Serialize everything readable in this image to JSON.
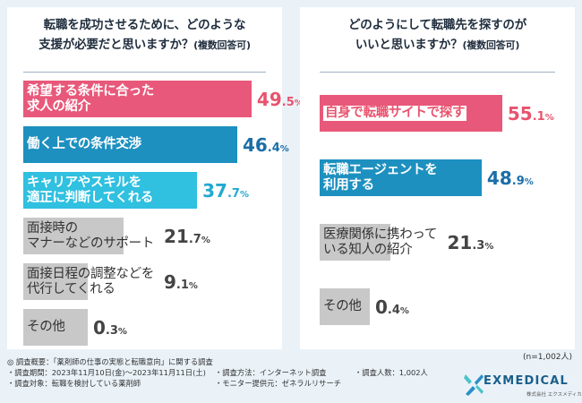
{
  "colors": {
    "pink": "#e8587a",
    "teal": "#1d90c0",
    "cyan": "#30c0e0",
    "gray": "#c8c8c8",
    "dark_text": "#333333",
    "value_pink": "#e8536e",
    "value_teal": "#1b6ea8",
    "value_cyan": "#22a9d1",
    "value_gray": "#444444"
  },
  "footer": {
    "overview": "調査概要：「薬剤師の仕事の実態と転職意向」に関する調査",
    "period": "・調査期間：2023年11月10日(金)～2023年11月11日(土)",
    "target": "・調査対象：転職を検討している薬剤師",
    "method": "・調査方法：インターネット調査",
    "monitor": "・モニター提供元：ゼネラルリサーチ",
    "count": "・調査人数：1,002人"
  },
  "sample_size": "(n=1,002人)",
  "logo": {
    "name": "EXMEDICAL",
    "sub": "株式会社 エクスメディカル"
  },
  "chart_data": [
    {
      "type": "bar",
      "orientation": "horizontal",
      "title_lines": [
        "転職を成功させるために、どのような",
        "支援が必要だと思いますか？"
      ],
      "title_note": "(複数回答可)",
      "xlim": [
        0,
        100
      ],
      "unit": "%",
      "categories": [
        [
          "希望する条件に合った",
          "求人の紹介"
        ],
        [
          "働く上での条件交渉"
        ],
        [
          "キャリアやスキルを",
          "適正に判断してくれる"
        ],
        [
          "面接時の",
          "マナーなどのサポート"
        ],
        [
          "面接日程の調整などを",
          "代行してくれる"
        ],
        [
          "その他"
        ]
      ],
      "values": [
        49.5,
        46.4,
        37.7,
        21.7,
        9.1,
        0.3
      ],
      "bar_colors": [
        "pink",
        "teal",
        "cyan",
        "gray",
        "gray",
        "gray"
      ]
    },
    {
      "type": "bar",
      "orientation": "horizontal",
      "title_lines": [
        "どのようにして転職先を探すのが",
        "いいと思いますか？"
      ],
      "title_note": "(複数回答可)",
      "xlim": [
        0,
        100
      ],
      "unit": "%",
      "categories": [
        [
          "自身で転職サイトで探す"
        ],
        [
          "転職エージェントを",
          "利用する"
        ],
        [
          "医療関係に携わって",
          "いる知人の紹介"
        ],
        [
          "その他"
        ]
      ],
      "values": [
        55.1,
        48.9,
        21.3,
        0.4
      ],
      "bar_colors": [
        "pink",
        "teal",
        "gray",
        "gray"
      ]
    }
  ]
}
